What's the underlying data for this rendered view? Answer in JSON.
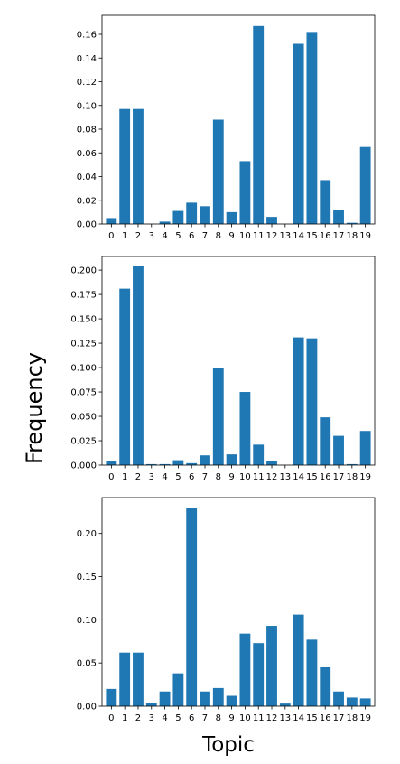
{
  "figure": {
    "ylabel": "Frequency",
    "xlabel": "Topic",
    "bar_color": "#1f77b4"
  },
  "chart_data": [
    {
      "type": "bar",
      "categories": [
        "0",
        "1",
        "2",
        "3",
        "4",
        "5",
        "6",
        "7",
        "8",
        "9",
        "10",
        "11",
        "12",
        "13",
        "14",
        "15",
        "16",
        "17",
        "18",
        "19"
      ],
      "values": [
        0.005,
        0.097,
        0.097,
        0.0,
        0.002,
        0.011,
        0.018,
        0.015,
        0.088,
        0.01,
        0.053,
        0.167,
        0.006,
        0.0,
        0.152,
        0.162,
        0.037,
        0.012,
        0.001,
        0.065
      ],
      "yticks": [
        "0.00",
        "0.02",
        "0.04",
        "0.06",
        "0.08",
        "0.10",
        "0.12",
        "0.14",
        "0.16"
      ],
      "ylim": [
        0,
        0.176
      ],
      "grid": false
    },
    {
      "type": "bar",
      "categories": [
        "0",
        "1",
        "2",
        "3",
        "4",
        "5",
        "6",
        "7",
        "8",
        "9",
        "10",
        "11",
        "12",
        "13",
        "14",
        "15",
        "16",
        "17",
        "18",
        "19"
      ],
      "values": [
        0.004,
        0.181,
        0.204,
        0.001,
        0.001,
        0.005,
        0.002,
        0.01,
        0.1,
        0.011,
        0.075,
        0.021,
        0.004,
        0.0,
        0.131,
        0.13,
        0.049,
        0.03,
        0.001,
        0.035
      ],
      "yticks": [
        "0.000",
        "0.025",
        "0.050",
        "0.075",
        "0.100",
        "0.125",
        "0.150",
        "0.175",
        "0.200"
      ],
      "ylim": [
        0,
        0.214
      ],
      "grid": false
    },
    {
      "type": "bar",
      "categories": [
        "0",
        "1",
        "2",
        "3",
        "4",
        "5",
        "6",
        "7",
        "8",
        "9",
        "10",
        "11",
        "12",
        "13",
        "14",
        "15",
        "16",
        "17",
        "18",
        "19"
      ],
      "values": [
        0.02,
        0.062,
        0.062,
        0.004,
        0.017,
        0.038,
        0.23,
        0.017,
        0.021,
        0.012,
        0.084,
        0.073,
        0.093,
        0.003,
        0.106,
        0.077,
        0.045,
        0.017,
        0.01,
        0.009
      ],
      "yticks": [
        "0.00",
        "0.05",
        "0.10",
        "0.15",
        "0.20"
      ],
      "ylim": [
        0,
        0.2415
      ],
      "grid": false
    }
  ]
}
